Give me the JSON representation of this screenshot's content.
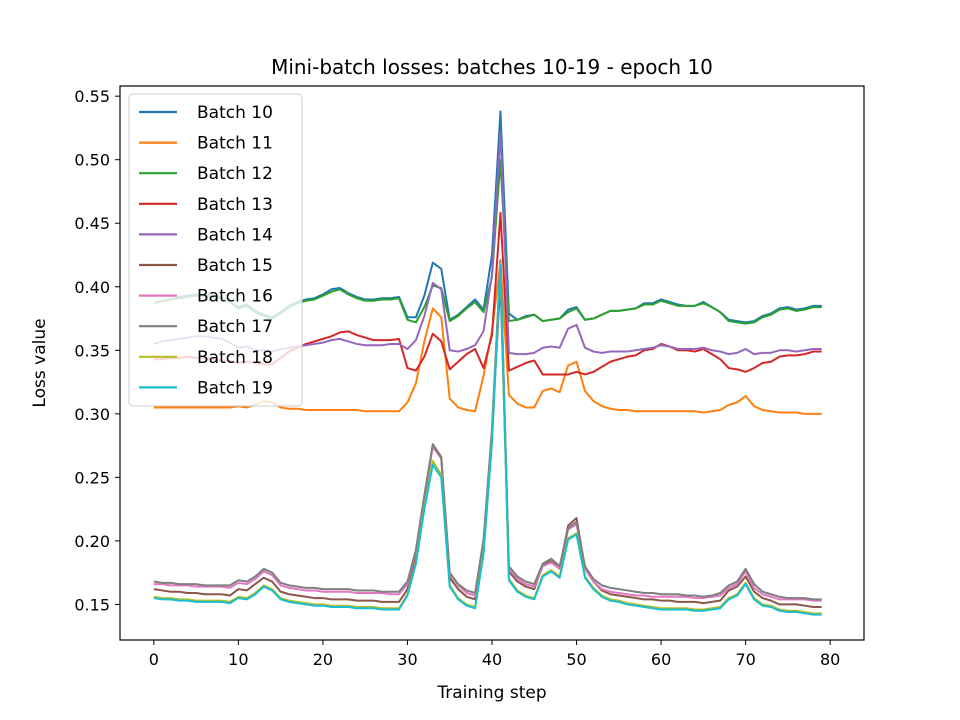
{
  "chart_data": {
    "type": "line",
    "title": "Mini-batch losses: batches 10-19 - epoch 10",
    "xlabel": "Training step",
    "ylabel": "Loss value",
    "xlim": [
      -4,
      84
    ],
    "ylim": [
      0.122,
      0.558
    ],
    "xticks": [
      0,
      10,
      20,
      30,
      40,
      50,
      60,
      70,
      80
    ],
    "yticks": [
      0.15,
      0.2,
      0.25,
      0.3,
      0.35,
      0.4,
      0.45,
      0.5,
      0.55
    ],
    "grid": false,
    "legend_position": "upper-left",
    "x": [
      0,
      1,
      2,
      3,
      4,
      5,
      6,
      7,
      8,
      9,
      10,
      11,
      12,
      13,
      14,
      15,
      16,
      17,
      18,
      19,
      20,
      21,
      22,
      23,
      24,
      25,
      26,
      27,
      28,
      29,
      30,
      31,
      32,
      33,
      34,
      35,
      36,
      37,
      38,
      39,
      40,
      41,
      42,
      43,
      44,
      45,
      46,
      47,
      48,
      49,
      50,
      51,
      52,
      53,
      54,
      55,
      56,
      57,
      58,
      59,
      60,
      61,
      62,
      63,
      64,
      65,
      66,
      67,
      68,
      69,
      70,
      71,
      72,
      73,
      74,
      75,
      76,
      77,
      78,
      79
    ],
    "series": [
      {
        "name": "Batch 10",
        "color": "#1f77b4",
        "values": [
          0.387,
          0.389,
          0.39,
          0.392,
          0.393,
          0.394,
          0.394,
          0.393,
          0.392,
          0.388,
          0.384,
          0.386,
          0.381,
          0.378,
          0.376,
          0.38,
          0.385,
          0.388,
          0.39,
          0.391,
          0.394,
          0.398,
          0.399,
          0.395,
          0.392,
          0.39,
          0.39,
          0.391,
          0.391,
          0.392,
          0.376,
          0.376,
          0.393,
          0.419,
          0.414,
          0.374,
          0.378,
          0.384,
          0.39,
          0.382,
          0.425,
          0.538,
          0.379,
          0.374,
          0.377,
          0.378,
          0.373,
          0.374,
          0.375,
          0.382,
          0.384,
          0.374,
          0.375,
          0.378,
          0.381,
          0.381,
          0.382,
          0.383,
          0.387,
          0.387,
          0.39,
          0.388,
          0.386,
          0.385,
          0.385,
          0.388,
          0.384,
          0.38,
          0.374,
          0.373,
          0.372,
          0.373,
          0.377,
          0.379,
          0.383,
          0.384,
          0.382,
          0.383,
          0.385,
          0.385
        ]
      },
      {
        "name": "Batch 11",
        "color": "#ff7f0e",
        "values": [
          0.305,
          0.305,
          0.305,
          0.305,
          0.305,
          0.305,
          0.305,
          0.305,
          0.305,
          0.305,
          0.306,
          0.305,
          0.307,
          0.31,
          0.309,
          0.305,
          0.304,
          0.304,
          0.303,
          0.303,
          0.303,
          0.303,
          0.303,
          0.303,
          0.303,
          0.302,
          0.302,
          0.302,
          0.302,
          0.302,
          0.309,
          0.324,
          0.357,
          0.383,
          0.376,
          0.312,
          0.305,
          0.303,
          0.302,
          0.33,
          0.365,
          0.42,
          0.315,
          0.308,
          0.305,
          0.305,
          0.318,
          0.32,
          0.317,
          0.338,
          0.341,
          0.318,
          0.31,
          0.306,
          0.304,
          0.303,
          0.303,
          0.302,
          0.302,
          0.302,
          0.302,
          0.302,
          0.302,
          0.302,
          0.302,
          0.301,
          0.302,
          0.303,
          0.307,
          0.309,
          0.314,
          0.306,
          0.303,
          0.302,
          0.301,
          0.301,
          0.301,
          0.3,
          0.3,
          0.3
        ]
      },
      {
        "name": "Batch 12",
        "color": "#2ca02c",
        "values": [
          0.387,
          0.389,
          0.39,
          0.391,
          0.392,
          0.393,
          0.393,
          0.392,
          0.391,
          0.388,
          0.383,
          0.385,
          0.38,
          0.377,
          0.375,
          0.379,
          0.384,
          0.387,
          0.389,
          0.39,
          0.393,
          0.396,
          0.398,
          0.394,
          0.391,
          0.389,
          0.389,
          0.39,
          0.39,
          0.391,
          0.374,
          0.372,
          0.384,
          0.401,
          0.399,
          0.373,
          0.377,
          0.383,
          0.388,
          0.38,
          0.408,
          0.5,
          0.373,
          0.374,
          0.376,
          0.378,
          0.373,
          0.374,
          0.375,
          0.38,
          0.383,
          0.374,
          0.375,
          0.378,
          0.381,
          0.381,
          0.382,
          0.383,
          0.386,
          0.386,
          0.389,
          0.387,
          0.385,
          0.385,
          0.385,
          0.387,
          0.384,
          0.38,
          0.373,
          0.372,
          0.371,
          0.372,
          0.376,
          0.378,
          0.382,
          0.383,
          0.381,
          0.382,
          0.384,
          0.384
        ]
      },
      {
        "name": "Batch 13",
        "color": "#d62728",
        "values": [
          0.343,
          0.343,
          0.344,
          0.344,
          0.345,
          0.344,
          0.344,
          0.343,
          0.342,
          0.342,
          0.34,
          0.341,
          0.34,
          0.339,
          0.339,
          0.344,
          0.349,
          0.352,
          0.355,
          0.357,
          0.359,
          0.361,
          0.364,
          0.365,
          0.362,
          0.36,
          0.358,
          0.358,
          0.358,
          0.359,
          0.336,
          0.334,
          0.345,
          0.363,
          0.357,
          0.335,
          0.341,
          0.347,
          0.351,
          0.336,
          0.362,
          0.458,
          0.334,
          0.337,
          0.34,
          0.342,
          0.331,
          0.331,
          0.331,
          0.331,
          0.333,
          0.331,
          0.333,
          0.337,
          0.341,
          0.343,
          0.345,
          0.346,
          0.35,
          0.351,
          0.355,
          0.353,
          0.35,
          0.35,
          0.349,
          0.351,
          0.347,
          0.343,
          0.336,
          0.335,
          0.333,
          0.336,
          0.34,
          0.341,
          0.345,
          0.346,
          0.346,
          0.347,
          0.349,
          0.349
        ]
      },
      {
        "name": "Batch 14",
        "color": "#9467bd",
        "values": [
          0.355,
          0.357,
          0.358,
          0.359,
          0.36,
          0.361,
          0.361,
          0.36,
          0.359,
          0.356,
          0.352,
          0.353,
          0.35,
          0.35,
          0.349,
          0.351,
          0.352,
          0.353,
          0.354,
          0.355,
          0.356,
          0.358,
          0.359,
          0.357,
          0.355,
          0.354,
          0.354,
          0.354,
          0.355,
          0.355,
          0.351,
          0.358,
          0.377,
          0.403,
          0.398,
          0.35,
          0.349,
          0.351,
          0.354,
          0.365,
          0.41,
          0.522,
          0.348,
          0.347,
          0.347,
          0.348,
          0.352,
          0.353,
          0.352,
          0.367,
          0.37,
          0.352,
          0.349,
          0.348,
          0.349,
          0.349,
          0.349,
          0.35,
          0.351,
          0.352,
          0.354,
          0.353,
          0.351,
          0.351,
          0.351,
          0.352,
          0.35,
          0.349,
          0.347,
          0.348,
          0.351,
          0.347,
          0.348,
          0.348,
          0.35,
          0.35,
          0.349,
          0.35,
          0.351,
          0.351
        ]
      },
      {
        "name": "Batch 15",
        "color": "#8c564b",
        "values": [
          0.162,
          0.161,
          0.16,
          0.16,
          0.159,
          0.159,
          0.158,
          0.158,
          0.158,
          0.157,
          0.162,
          0.161,
          0.166,
          0.171,
          0.168,
          0.16,
          0.158,
          0.157,
          0.156,
          0.155,
          0.155,
          0.154,
          0.154,
          0.154,
          0.153,
          0.153,
          0.153,
          0.152,
          0.152,
          0.152,
          0.162,
          0.188,
          0.232,
          0.276,
          0.266,
          0.171,
          0.162,
          0.156,
          0.154,
          0.197,
          0.285,
          0.405,
          0.176,
          0.168,
          0.164,
          0.162,
          0.181,
          0.184,
          0.178,
          0.212,
          0.218,
          0.178,
          0.168,
          0.161,
          0.158,
          0.157,
          0.156,
          0.155,
          0.154,
          0.154,
          0.153,
          0.153,
          0.152,
          0.152,
          0.152,
          0.151,
          0.152,
          0.153,
          0.161,
          0.164,
          0.172,
          0.16,
          0.155,
          0.153,
          0.15,
          0.15,
          0.15,
          0.149,
          0.148,
          0.148
        ]
      },
      {
        "name": "Batch 16",
        "color": "#e377c2",
        "values": [
          0.166,
          0.166,
          0.165,
          0.165,
          0.165,
          0.164,
          0.164,
          0.164,
          0.164,
          0.163,
          0.167,
          0.166,
          0.17,
          0.176,
          0.173,
          0.165,
          0.163,
          0.162,
          0.161,
          0.161,
          0.16,
          0.16,
          0.16,
          0.16,
          0.159,
          0.159,
          0.159,
          0.159,
          0.158,
          0.158,
          0.166,
          0.192,
          0.235,
          0.274,
          0.265,
          0.174,
          0.165,
          0.159,
          0.157,
          0.2,
          0.287,
          0.42,
          0.178,
          0.17,
          0.166,
          0.164,
          0.18,
          0.183,
          0.178,
          0.209,
          0.213,
          0.178,
          0.168,
          0.162,
          0.16,
          0.159,
          0.158,
          0.157,
          0.157,
          0.156,
          0.156,
          0.156,
          0.156,
          0.156,
          0.155,
          0.155,
          0.156,
          0.157,
          0.163,
          0.166,
          0.176,
          0.163,
          0.158,
          0.156,
          0.154,
          0.154,
          0.154,
          0.154,
          0.153,
          0.153
        ]
      },
      {
        "name": "Batch 17",
        "color": "#7f7f7f",
        "values": [
          0.168,
          0.167,
          0.167,
          0.166,
          0.166,
          0.166,
          0.165,
          0.165,
          0.165,
          0.165,
          0.169,
          0.168,
          0.172,
          0.178,
          0.175,
          0.167,
          0.165,
          0.164,
          0.163,
          0.163,
          0.162,
          0.162,
          0.162,
          0.162,
          0.161,
          0.161,
          0.161,
          0.16,
          0.16,
          0.16,
          0.168,
          0.193,
          0.236,
          0.276,
          0.265,
          0.175,
          0.166,
          0.161,
          0.159,
          0.201,
          0.288,
          0.421,
          0.18,
          0.172,
          0.168,
          0.166,
          0.182,
          0.186,
          0.18,
          0.21,
          0.215,
          0.18,
          0.17,
          0.165,
          0.163,
          0.162,
          0.161,
          0.16,
          0.159,
          0.159,
          0.158,
          0.158,
          0.158,
          0.157,
          0.157,
          0.156,
          0.157,
          0.159,
          0.165,
          0.168,
          0.178,
          0.166,
          0.16,
          0.158,
          0.156,
          0.155,
          0.155,
          0.155,
          0.154,
          0.154
        ]
      },
      {
        "name": "Batch 18",
        "color": "#bcbd22",
        "values": [
          0.156,
          0.155,
          0.155,
          0.154,
          0.154,
          0.153,
          0.153,
          0.153,
          0.153,
          0.152,
          0.156,
          0.155,
          0.159,
          0.165,
          0.162,
          0.155,
          0.153,
          0.152,
          0.151,
          0.15,
          0.15,
          0.149,
          0.149,
          0.149,
          0.148,
          0.148,
          0.148,
          0.147,
          0.147,
          0.147,
          0.158,
          0.183,
          0.227,
          0.263,
          0.252,
          0.165,
          0.155,
          0.15,
          0.148,
          0.191,
          0.279,
          0.418,
          0.17,
          0.161,
          0.157,
          0.155,
          0.173,
          0.177,
          0.172,
          0.202,
          0.206,
          0.172,
          0.163,
          0.157,
          0.154,
          0.153,
          0.151,
          0.15,
          0.149,
          0.148,
          0.147,
          0.147,
          0.147,
          0.147,
          0.146,
          0.146,
          0.147,
          0.148,
          0.155,
          0.158,
          0.167,
          0.155,
          0.15,
          0.149,
          0.146,
          0.145,
          0.145,
          0.144,
          0.143,
          0.143
        ]
      },
      {
        "name": "Batch 19",
        "color": "#17becf",
        "values": [
          0.155,
          0.154,
          0.154,
          0.153,
          0.153,
          0.152,
          0.152,
          0.152,
          0.152,
          0.151,
          0.155,
          0.154,
          0.158,
          0.164,
          0.161,
          0.154,
          0.152,
          0.151,
          0.15,
          0.149,
          0.149,
          0.148,
          0.148,
          0.148,
          0.147,
          0.147,
          0.147,
          0.146,
          0.146,
          0.146,
          0.157,
          0.182,
          0.225,
          0.26,
          0.25,
          0.164,
          0.154,
          0.149,
          0.147,
          0.19,
          0.278,
          0.417,
          0.169,
          0.16,
          0.156,
          0.154,
          0.172,
          0.176,
          0.171,
          0.201,
          0.205,
          0.171,
          0.162,
          0.156,
          0.153,
          0.152,
          0.15,
          0.149,
          0.148,
          0.147,
          0.146,
          0.146,
          0.146,
          0.146,
          0.145,
          0.145,
          0.146,
          0.147,
          0.154,
          0.157,
          0.166,
          0.154,
          0.149,
          0.148,
          0.145,
          0.144,
          0.144,
          0.143,
          0.142,
          0.142
        ]
      }
    ]
  }
}
